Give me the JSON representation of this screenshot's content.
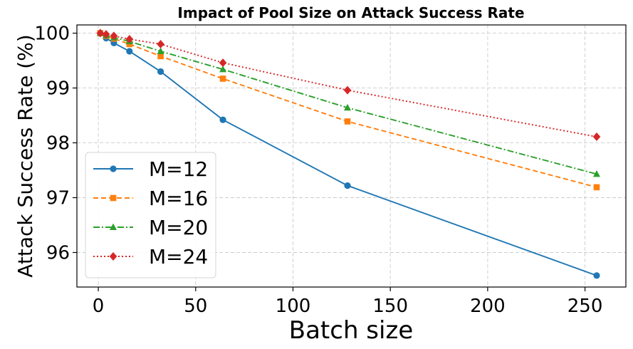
{
  "chart_data": {
    "type": "line",
    "title": "Impact of Pool Size on Attack Success Rate",
    "xlabel": "Batch size",
    "ylabel": "Attack Success Rate (%)",
    "xlim": [
      -11,
      271
    ],
    "ylim": [
      95.37,
      100.15
    ],
    "xticks": [
      0,
      50,
      100,
      150,
      200,
      250
    ],
    "yticks": [
      96,
      97,
      98,
      99,
      100
    ],
    "grid": true,
    "legend_position": "lower-left",
    "x": [
      1,
      4,
      8,
      16,
      32,
      64,
      128,
      256
    ],
    "series": [
      {
        "name": "M=12",
        "label": "M=12",
        "color": "#1f77b4",
        "marker": "circle",
        "linestyle": "solid",
        "values": [
          100.0,
          99.91,
          99.82,
          99.67,
          99.3,
          98.42,
          97.22,
          95.58
        ]
      },
      {
        "name": "M=16",
        "label": "M=16",
        "color": "#ff7f0e",
        "marker": "square",
        "linestyle": "dashed",
        "values": [
          100.0,
          99.95,
          99.9,
          99.8,
          99.58,
          99.17,
          98.39,
          97.19
        ]
      },
      {
        "name": "M=20",
        "label": "M=20",
        "color": "#2ca02c",
        "marker": "triangle",
        "linestyle": "dashdot",
        "values": [
          100.0,
          99.96,
          99.92,
          99.85,
          99.67,
          99.34,
          98.64,
          97.43
        ]
      },
      {
        "name": "M=24",
        "label": "M=24",
        "color": "#d62728",
        "marker": "diamond",
        "linestyle": "dotted",
        "values": [
          100.0,
          99.98,
          99.95,
          99.89,
          99.8,
          99.46,
          98.96,
          98.11
        ]
      }
    ]
  }
}
